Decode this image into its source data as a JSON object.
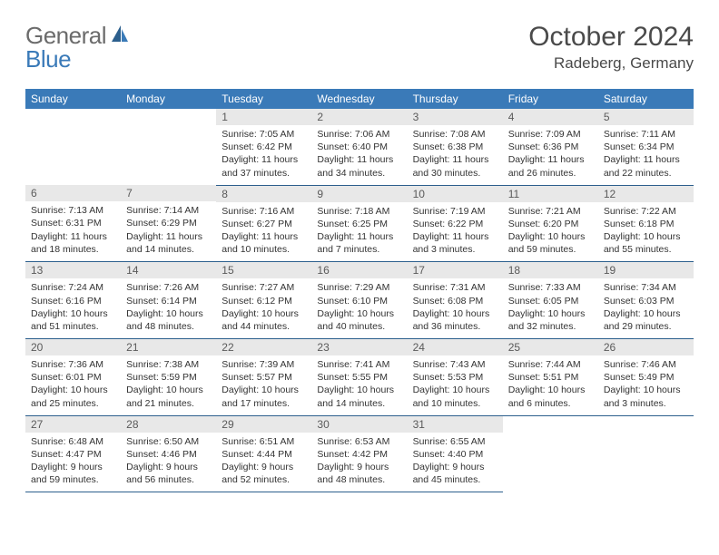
{
  "logo": {
    "part1": "General",
    "part2": "Blue"
  },
  "title": "October 2024",
  "location": "Radeberg, Germany",
  "colors": {
    "header_bg": "#3a7ab8",
    "header_text": "#ffffff",
    "daynum_bg": "#e8e8e8",
    "daynum_text": "#5a5a5a",
    "body_text": "#333333",
    "rule": "#2c5f8d",
    "logo_gray": "#6b6b6b",
    "logo_blue": "#3a7ab8"
  },
  "day_headers": [
    "Sunday",
    "Monday",
    "Tuesday",
    "Wednesday",
    "Thursday",
    "Friday",
    "Saturday"
  ],
  "weeks": [
    [
      null,
      null,
      {
        "n": "1",
        "sr": "Sunrise: 7:05 AM",
        "ss": "Sunset: 6:42 PM",
        "dl1": "Daylight: 11 hours",
        "dl2": "and 37 minutes."
      },
      {
        "n": "2",
        "sr": "Sunrise: 7:06 AM",
        "ss": "Sunset: 6:40 PM",
        "dl1": "Daylight: 11 hours",
        "dl2": "and 34 minutes."
      },
      {
        "n": "3",
        "sr": "Sunrise: 7:08 AM",
        "ss": "Sunset: 6:38 PM",
        "dl1": "Daylight: 11 hours",
        "dl2": "and 30 minutes."
      },
      {
        "n": "4",
        "sr": "Sunrise: 7:09 AM",
        "ss": "Sunset: 6:36 PM",
        "dl1": "Daylight: 11 hours",
        "dl2": "and 26 minutes."
      },
      {
        "n": "5",
        "sr": "Sunrise: 7:11 AM",
        "ss": "Sunset: 6:34 PM",
        "dl1": "Daylight: 11 hours",
        "dl2": "and 22 minutes."
      }
    ],
    [
      {
        "n": "6",
        "sr": "Sunrise: 7:13 AM",
        "ss": "Sunset: 6:31 PM",
        "dl1": "Daylight: 11 hours",
        "dl2": "and 18 minutes."
      },
      {
        "n": "7",
        "sr": "Sunrise: 7:14 AM",
        "ss": "Sunset: 6:29 PM",
        "dl1": "Daylight: 11 hours",
        "dl2": "and 14 minutes."
      },
      {
        "n": "8",
        "sr": "Sunrise: 7:16 AM",
        "ss": "Sunset: 6:27 PM",
        "dl1": "Daylight: 11 hours",
        "dl2": "and 10 minutes."
      },
      {
        "n": "9",
        "sr": "Sunrise: 7:18 AM",
        "ss": "Sunset: 6:25 PM",
        "dl1": "Daylight: 11 hours",
        "dl2": "and 7 minutes."
      },
      {
        "n": "10",
        "sr": "Sunrise: 7:19 AM",
        "ss": "Sunset: 6:22 PM",
        "dl1": "Daylight: 11 hours",
        "dl2": "and 3 minutes."
      },
      {
        "n": "11",
        "sr": "Sunrise: 7:21 AM",
        "ss": "Sunset: 6:20 PM",
        "dl1": "Daylight: 10 hours",
        "dl2": "and 59 minutes."
      },
      {
        "n": "12",
        "sr": "Sunrise: 7:22 AM",
        "ss": "Sunset: 6:18 PM",
        "dl1": "Daylight: 10 hours",
        "dl2": "and 55 minutes."
      }
    ],
    [
      {
        "n": "13",
        "sr": "Sunrise: 7:24 AM",
        "ss": "Sunset: 6:16 PM",
        "dl1": "Daylight: 10 hours",
        "dl2": "and 51 minutes."
      },
      {
        "n": "14",
        "sr": "Sunrise: 7:26 AM",
        "ss": "Sunset: 6:14 PM",
        "dl1": "Daylight: 10 hours",
        "dl2": "and 48 minutes."
      },
      {
        "n": "15",
        "sr": "Sunrise: 7:27 AM",
        "ss": "Sunset: 6:12 PM",
        "dl1": "Daylight: 10 hours",
        "dl2": "and 44 minutes."
      },
      {
        "n": "16",
        "sr": "Sunrise: 7:29 AM",
        "ss": "Sunset: 6:10 PM",
        "dl1": "Daylight: 10 hours",
        "dl2": "and 40 minutes."
      },
      {
        "n": "17",
        "sr": "Sunrise: 7:31 AM",
        "ss": "Sunset: 6:08 PM",
        "dl1": "Daylight: 10 hours",
        "dl2": "and 36 minutes."
      },
      {
        "n": "18",
        "sr": "Sunrise: 7:33 AM",
        "ss": "Sunset: 6:05 PM",
        "dl1": "Daylight: 10 hours",
        "dl2": "and 32 minutes."
      },
      {
        "n": "19",
        "sr": "Sunrise: 7:34 AM",
        "ss": "Sunset: 6:03 PM",
        "dl1": "Daylight: 10 hours",
        "dl2": "and 29 minutes."
      }
    ],
    [
      {
        "n": "20",
        "sr": "Sunrise: 7:36 AM",
        "ss": "Sunset: 6:01 PM",
        "dl1": "Daylight: 10 hours",
        "dl2": "and 25 minutes."
      },
      {
        "n": "21",
        "sr": "Sunrise: 7:38 AM",
        "ss": "Sunset: 5:59 PM",
        "dl1": "Daylight: 10 hours",
        "dl2": "and 21 minutes."
      },
      {
        "n": "22",
        "sr": "Sunrise: 7:39 AM",
        "ss": "Sunset: 5:57 PM",
        "dl1": "Daylight: 10 hours",
        "dl2": "and 17 minutes."
      },
      {
        "n": "23",
        "sr": "Sunrise: 7:41 AM",
        "ss": "Sunset: 5:55 PM",
        "dl1": "Daylight: 10 hours",
        "dl2": "and 14 minutes."
      },
      {
        "n": "24",
        "sr": "Sunrise: 7:43 AM",
        "ss": "Sunset: 5:53 PM",
        "dl1": "Daylight: 10 hours",
        "dl2": "and 10 minutes."
      },
      {
        "n": "25",
        "sr": "Sunrise: 7:44 AM",
        "ss": "Sunset: 5:51 PM",
        "dl1": "Daylight: 10 hours",
        "dl2": "and 6 minutes."
      },
      {
        "n": "26",
        "sr": "Sunrise: 7:46 AM",
        "ss": "Sunset: 5:49 PM",
        "dl1": "Daylight: 10 hours",
        "dl2": "and 3 minutes."
      }
    ],
    [
      {
        "n": "27",
        "sr": "Sunrise: 6:48 AM",
        "ss": "Sunset: 4:47 PM",
        "dl1": "Daylight: 9 hours",
        "dl2": "and 59 minutes."
      },
      {
        "n": "28",
        "sr": "Sunrise: 6:50 AM",
        "ss": "Sunset: 4:46 PM",
        "dl1": "Daylight: 9 hours",
        "dl2": "and 56 minutes."
      },
      {
        "n": "29",
        "sr": "Sunrise: 6:51 AM",
        "ss": "Sunset: 4:44 PM",
        "dl1": "Daylight: 9 hours",
        "dl2": "and 52 minutes."
      },
      {
        "n": "30",
        "sr": "Sunrise: 6:53 AM",
        "ss": "Sunset: 4:42 PM",
        "dl1": "Daylight: 9 hours",
        "dl2": "and 48 minutes."
      },
      {
        "n": "31",
        "sr": "Sunrise: 6:55 AM",
        "ss": "Sunset: 4:40 PM",
        "dl1": "Daylight: 9 hours",
        "dl2": "and 45 minutes."
      },
      null,
      null
    ]
  ]
}
